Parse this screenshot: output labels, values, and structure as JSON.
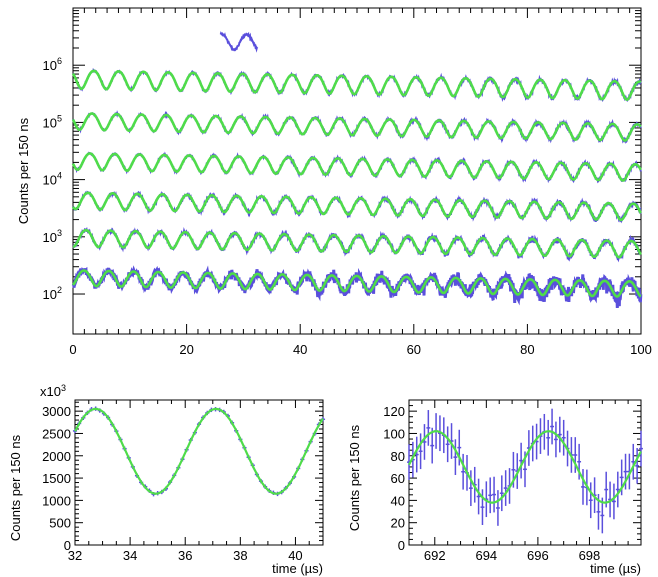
{
  "colors": {
    "data": "#5a4fdc",
    "fit": "#4fdc4a",
    "axis": "#000000"
  },
  "chart_data": [
    {
      "id": "main",
      "type": "line",
      "title": "",
      "ylabel": "Counts per 150 ns",
      "xlabel": "",
      "xlim": [
        0,
        100
      ],
      "yscale": "log",
      "ylim": [
        20,
        10000000
      ],
      "x_ticks": [
        "0",
        "20",
        "40",
        "60",
        "80",
        "100"
      ],
      "y_ticks": [
        {
          "base": "10",
          "exp": "2",
          "value": 100
        },
        {
          "base": "10",
          "exp": "3",
          "value": 1000
        },
        {
          "base": "10",
          "exp": "4",
          "value": 10000
        },
        {
          "base": "10",
          "exp": "5",
          "value": 100000
        },
        {
          "base": "10",
          "exp": "6",
          "value": 1000000
        }
      ],
      "period_us": 4.365,
      "series": [
        {
          "x_start": 26,
          "x_end": 32.5,
          "y_center": 3000000,
          "amp": 0.3,
          "phase": 0.0,
          "with_fit": false,
          "noise": 0.03
        },
        {
          "x_start": 0,
          "x_end": 100,
          "y_center": 600000,
          "amp": 0.35,
          "phase": 1.0,
          "with_fit": true,
          "noise": 0.02
        },
        {
          "x_start": 0,
          "x_end": 100,
          "y_center": 110000,
          "amp": 0.32,
          "phase": 1.5,
          "with_fit": true,
          "noise": 0.02
        },
        {
          "x_start": 0,
          "x_end": 100,
          "y_center": 22000,
          "amp": 0.32,
          "phase": 2.0,
          "with_fit": true,
          "noise": 0.02
        },
        {
          "x_start": 0,
          "x_end": 100,
          "y_center": 4500,
          "amp": 0.32,
          "phase": 2.5,
          "with_fit": true,
          "noise": 0.03
        },
        {
          "x_start": 0,
          "x_end": 100,
          "y_center": 1000,
          "amp": 0.32,
          "phase": 3.0,
          "with_fit": true,
          "noise": 0.04
        },
        {
          "x_start": 0,
          "x_end": 100,
          "y_center": 200,
          "amp": 0.3,
          "phase": 3.5,
          "with_fit": true,
          "noise": 0.1
        }
      ]
    },
    {
      "id": "left",
      "type": "line",
      "ylabel": "Counts per 150 ns",
      "xlabel": "time (µs)",
      "exponent_label": "x10",
      "exponent_sup": "3",
      "xlim": [
        32,
        41
      ],
      "ylim": [
        0,
        3250
      ],
      "x_ticks": [
        "32",
        "34",
        "36",
        "38",
        "40"
      ],
      "y_ticks": [
        "0",
        "500",
        "1000",
        "1500",
        "2000",
        "2500",
        "3000"
      ],
      "center": 2100,
      "amp": 950,
      "period": 4.365,
      "peak_x": 32.75,
      "noise": 15
    },
    {
      "id": "right",
      "type": "line",
      "ylabel": "Counts per 150 ns",
      "xlabel": "time (µs)",
      "xlim": [
        691,
        700
      ],
      "ylim": [
        0,
        130
      ],
      "x_ticks": [
        "692",
        "694",
        "696",
        "698"
      ],
      "y_ticks": [
        "0",
        "20",
        "40",
        "60",
        "80",
        "100",
        "120"
      ],
      "center": 70,
      "amp": 32,
      "period": 4.365,
      "peak_x": 692.05,
      "noise": 10
    }
  ]
}
